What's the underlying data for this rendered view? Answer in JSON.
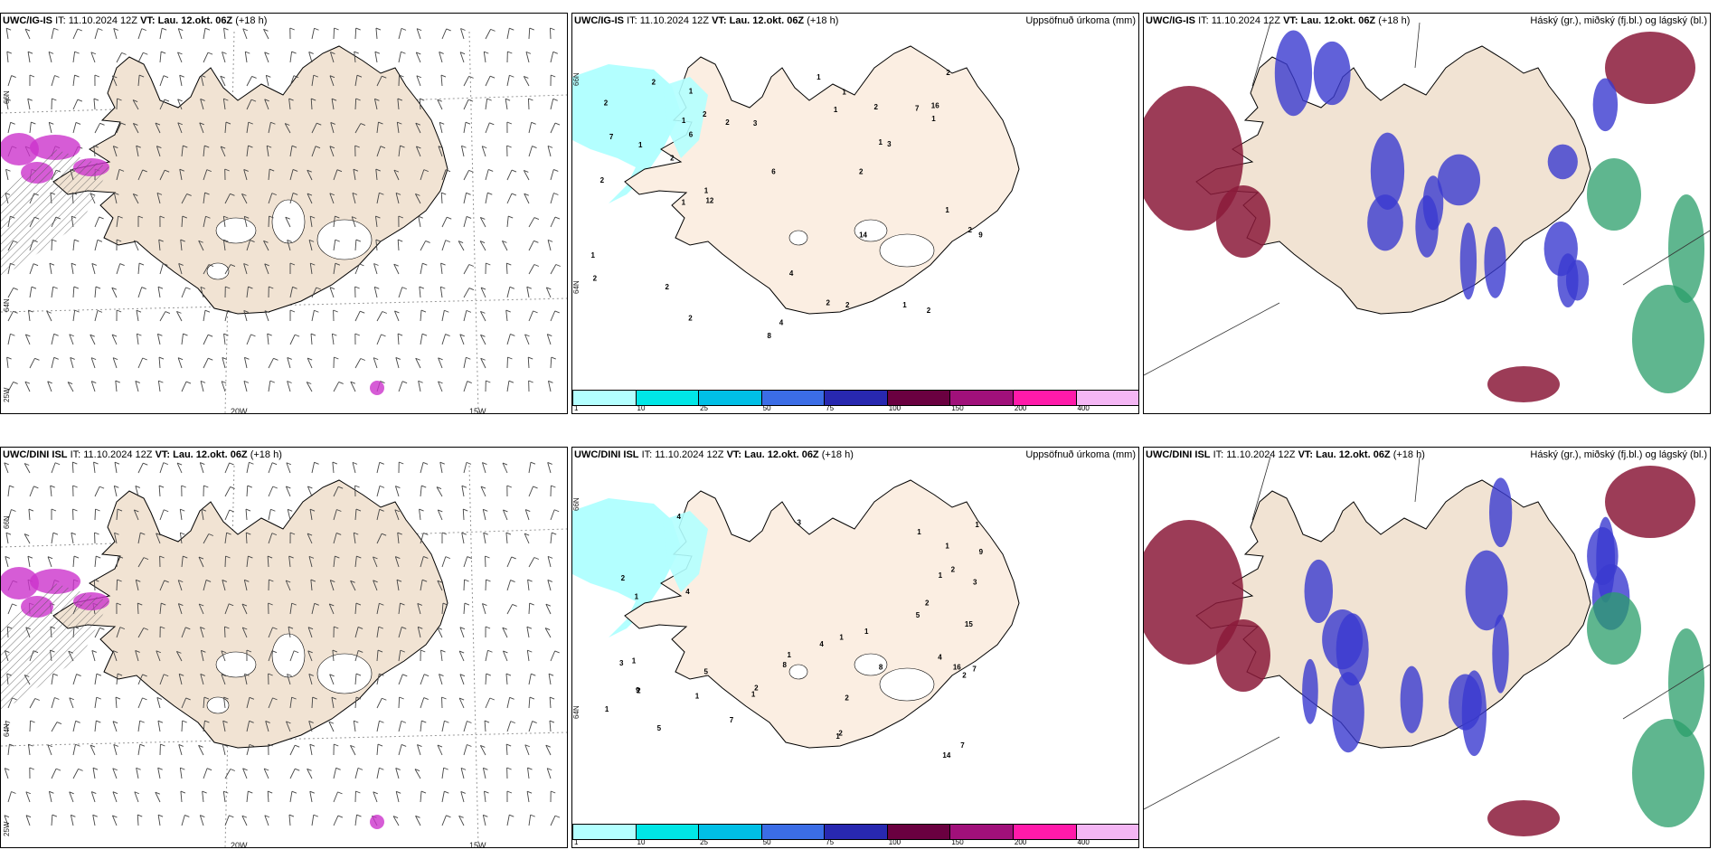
{
  "rows": [
    {
      "panels": [
        {
          "model": "UWC/IG-IS",
          "it_label": "IT:",
          "it": "11.10.2024 12Z",
          "vt_label": "VT:",
          "vt": "Lau. 12.okt. 06Z",
          "lead": "(+18 h)",
          "field": "",
          "type": "wind"
        },
        {
          "model": "UWC/IG-IS",
          "it_label": "IT:",
          "it": "11.10.2024 12Z",
          "vt_label": "VT:",
          "vt": "Lau. 12.okt. 06Z",
          "lead": "(+18 h)",
          "field": "Uppsöfnuð úrkoma (mm)",
          "type": "precip"
        },
        {
          "model": "UWC/IG-IS",
          "it_label": "IT:",
          "it": "11.10.2024 12Z",
          "vt_label": "VT:",
          "vt": "Lau. 12.okt. 06Z",
          "lead": "(+18 h)",
          "field": "Háský (gr.), miðský (fj.bl.) og lágský (bl.)",
          "type": "cloud"
        }
      ]
    },
    {
      "panels": [
        {
          "model": "UWC/DINI ISL",
          "it_label": "IT:",
          "it": "11.10.2024 12Z",
          "vt_label": "VT:",
          "vt": "Lau. 12.okt. 06Z",
          "lead": "(+18 h)",
          "field": "",
          "type": "wind"
        },
        {
          "model": "UWC/DINI ISL",
          "it_label": "IT:",
          "it": "11.10.2024 12Z",
          "vt_label": "VT:",
          "vt": "Lau. 12.okt. 06Z",
          "lead": "(+18 h)",
          "field": "Uppsöfnuð úrkoma (mm)",
          "type": "precip"
        },
        {
          "model": "UWC/DINI ISL",
          "it_label": "IT:",
          "it": "11.10.2024 12Z",
          "vt_label": "VT:",
          "vt": "Lau. 12.okt. 06Z",
          "lead": "(+18 h)",
          "field": "Háský (gr.), miðský (fj.bl.) og lágský (bl.)",
          "type": "cloud"
        }
      ]
    }
  ],
  "grid_labels": {
    "lat_66": "66N",
    "lat_64": "64N",
    "lon_25": "25W",
    "lon_20": "20W",
    "lon_15": "15W"
  },
  "legend": {
    "colors": [
      "#b3ffff",
      "#00e6e6",
      "#00bfe6",
      "#3b6de6",
      "#2828b0",
      "#6a0040",
      "#a0107a",
      "#ff1aaa",
      "#f4b6f4"
    ],
    "ticks": [
      "1",
      "10",
      "25",
      "50",
      "75",
      "100",
      "150",
      "200",
      "400"
    ]
  },
  "precip_numbers_ig": [
    "7",
    "6",
    "2",
    "4",
    "7",
    "8",
    "14",
    "12",
    "16",
    "9",
    "2",
    "2",
    "1",
    "2",
    "2",
    "2",
    "1",
    "3",
    "2",
    "2",
    "1",
    "1",
    "6",
    "4",
    "2",
    "2",
    "1",
    "1",
    "2",
    "1",
    "1",
    "2",
    "2",
    "1",
    "2",
    "1",
    "2",
    "1",
    "1",
    "2",
    "3",
    "1"
  ],
  "precip_numbers_dini": [
    "4",
    "2",
    "2",
    "7",
    "16",
    "15",
    "14",
    "5",
    "5",
    "4",
    "3",
    "1",
    "1",
    "3",
    "4",
    "8",
    "7",
    "3",
    "9",
    "2",
    "1",
    "1",
    "7",
    "8",
    "9",
    "4",
    "1",
    "2",
    "1",
    "1",
    "2",
    "5",
    "1",
    "2",
    "1",
    "1",
    "2",
    "1",
    "1",
    "1",
    "2"
  ],
  "colors": {
    "land": "#f1e3d3",
    "land_precip": "#fbeee2",
    "coast": "#000000",
    "wind": "#444444"
  }
}
